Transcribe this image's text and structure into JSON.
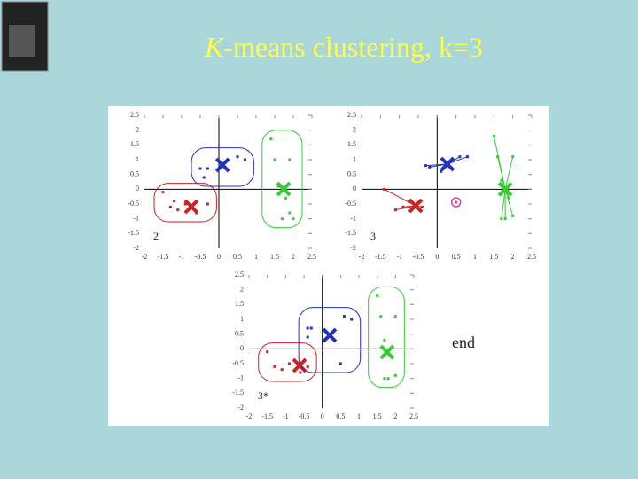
{
  "slide_title_italic": "K",
  "slide_title_rest": "-means clustering, k=3",
  "note": "end",
  "chart_data": [
    {
      "type": "scatter",
      "label": "2",
      "xlim": [
        -2,
        2.5
      ],
      "ylim": [
        -2,
        2.5
      ],
      "xticks": [
        -2,
        -1.5,
        -1,
        -0.5,
        0,
        0.5,
        1,
        1.5,
        2,
        2.5
      ],
      "yticks": [
        2.5,
        2,
        1.5,
        1,
        0.5,
        0,
        -0.5,
        -1,
        -1.5,
        -2
      ],
      "outline": true,
      "lines_to_centroid": false,
      "clusters": [
        {
          "color": "#cc2222",
          "x": [
            -1.5,
            -1.3,
            -1.1,
            -0.9,
            -1.2,
            -0.6,
            -0.3
          ],
          "y": [
            -0.1,
            -0.6,
            -0.7,
            -0.5,
            -0.4,
            -0.8,
            -0.5
          ],
          "centroid": [
            -0.74,
            -0.59
          ]
        },
        {
          "color": "#2233bb",
          "x": [
            -0.5,
            -0.3,
            -0.4,
            0.5,
            0.7
          ],
          "y": [
            0.7,
            0.7,
            0.4,
            1.1,
            1.0
          ],
          "centroid": [
            0.1,
            0.82
          ]
        },
        {
          "color": "#33cc33",
          "x": [
            1.4,
            1.5,
            1.9,
            1.6,
            1.8,
            1.9,
            2.0,
            1.7
          ],
          "y": [
            1.7,
            1.0,
            1.0,
            0.1,
            -0.3,
            -0.8,
            -1.0,
            -1.0
          ],
          "centroid": [
            1.74,
            0.01
          ]
        }
      ]
    },
    {
      "type": "scatter",
      "label": "3",
      "xlim": [
        -2,
        2.5
      ],
      "ylim": [
        -2,
        2.5
      ],
      "xticks": [
        -2,
        -1.5,
        -1,
        -0.5,
        0,
        0.5,
        1,
        1.5,
        2,
        2.5
      ],
      "yticks": [
        2.5,
        2,
        1.5,
        1,
        0.5,
        0,
        -0.5,
        -1,
        -1.5,
        -2
      ],
      "outline": false,
      "lines_to_centroid": true,
      "clusters": [
        {
          "color": "#cc2222",
          "x": [
            -1.4,
            -1.1,
            -0.9,
            -0.4
          ],
          "y": [
            0.0,
            -0.7,
            -0.6,
            -0.6
          ],
          "centroid": [
            -0.57,
            -0.56
          ]
        },
        {
          "color": "#2233bb",
          "x": [
            -0.3,
            -0.2,
            0.6,
            0.8,
            0.1
          ],
          "y": [
            0.8,
            0.75,
            1.1,
            1.1,
            0.6
          ],
          "centroid": [
            0.27,
            0.85
          ]
        },
        {
          "color": "#33cc33",
          "x": [
            1.5,
            1.6,
            2.0,
            1.7,
            1.9,
            1.7,
            2.0,
            1.8
          ],
          "y": [
            1.8,
            1.1,
            1.1,
            0.3,
            -0.3,
            -1.0,
            -0.9,
            -1.0
          ],
          "centroid": [
            1.8,
            0.0
          ]
        },
        {
          "color": "#e040a0",
          "x": [
            0.5
          ],
          "y": [
            -0.44
          ],
          "circled": true
        }
      ]
    },
    {
      "type": "scatter",
      "label": "3*",
      "xlim": [
        -2,
        2.5
      ],
      "ylim": [
        -2,
        2.5
      ],
      "xticks": [
        -2,
        -1.5,
        -1,
        -0.5,
        0,
        0.5,
        1,
        1.5,
        2,
        2.5
      ],
      "yticks": [
        2.5,
        2,
        1.5,
        1,
        0.5,
        0,
        -0.5,
        -1,
        -1.5,
        -2
      ],
      "outline": true,
      "lines_to_centroid": false,
      "clusters": [
        {
          "color": "#cc2222",
          "x": [
            -1.5,
            -1.3,
            -1.1,
            -0.9,
            -0.6,
            -0.4
          ],
          "y": [
            -0.1,
            -0.6,
            -0.7,
            -0.5,
            -0.8,
            -0.6
          ],
          "centroid": [
            -0.62,
            -0.56
          ]
        },
        {
          "color": "#2233bb",
          "x": [
            -0.4,
            -0.3,
            -0.4,
            0.6,
            0.8,
            0.5
          ],
          "y": [
            0.7,
            0.7,
            0.4,
            1.1,
            1.0,
            -0.5
          ],
          "centroid": [
            0.2,
            0.46
          ]
        },
        {
          "color": "#33cc33",
          "x": [
            1.5,
            1.6,
            2.0,
            1.7,
            1.9,
            1.7,
            2.0,
            1.8
          ],
          "y": [
            1.8,
            1.1,
            1.1,
            0.3,
            -0.3,
            -1.0,
            -0.9,
            -1.0
          ],
          "centroid": [
            1.77,
            -0.11
          ]
        }
      ]
    }
  ]
}
